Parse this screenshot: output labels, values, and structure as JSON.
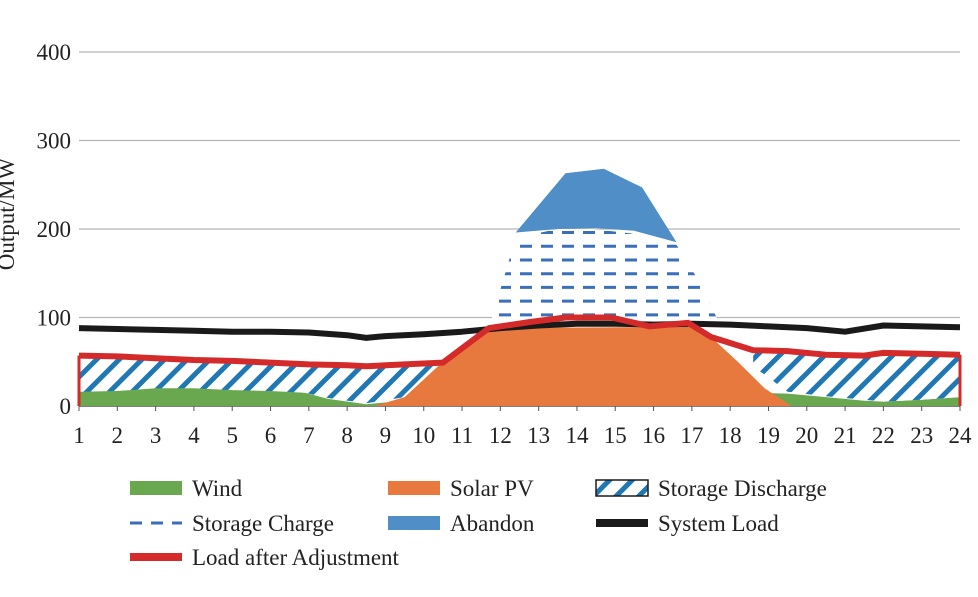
{
  "chart_data": {
    "type": "area",
    "title": "",
    "xlabel": "",
    "ylabel": "Output/MW",
    "x": [
      1,
      2,
      3,
      4,
      5,
      6,
      7,
      8,
      9,
      10,
      11,
      12,
      13,
      14,
      15,
      16,
      17,
      18,
      19,
      20,
      21,
      22,
      23,
      24
    ],
    "xlim": [
      1,
      24
    ],
    "ylim": [
      0,
      400
    ],
    "yticks": [
      0,
      100,
      200,
      300,
      400
    ],
    "grid": true,
    "legend_position": "bottom",
    "series": [
      {
        "name": "Wind",
        "kind": "area",
        "color": "#6aa84f",
        "points": [
          [
            1,
            18
          ],
          [
            2,
            19
          ],
          [
            3,
            22
          ],
          [
            4,
            21
          ],
          [
            5,
            19
          ],
          [
            6,
            18
          ],
          [
            6.9,
            15
          ],
          [
            7.5,
            8
          ],
          [
            8.5,
            2
          ],
          [
            9,
            4
          ],
          [
            10,
            3
          ],
          [
            11,
            2
          ],
          [
            12,
            1
          ],
          [
            13,
            1
          ],
          [
            14,
            0
          ],
          [
            14.9,
            0
          ],
          [
            15.7,
            17
          ],
          [
            16.5,
            17
          ],
          [
            17.5,
            16
          ],
          [
            18.5,
            15
          ],
          [
            19.5,
            14
          ],
          [
            20.5,
            10
          ],
          [
            21.5,
            6
          ],
          [
            22,
            5
          ],
          [
            23,
            7
          ],
          [
            24,
            10
          ]
        ]
      },
      {
        "name": "Solar PV",
        "kind": "area",
        "color": "#e8793e",
        "points": [
          [
            1,
            0
          ],
          [
            8.7,
            0
          ],
          [
            9.5,
            10
          ],
          [
            10.5,
            50
          ],
          [
            11.7,
            88
          ],
          [
            12.8,
            95
          ],
          [
            13.7,
            100
          ],
          [
            14.9,
            100
          ],
          [
            15.9,
            90
          ],
          [
            16.9,
            94
          ],
          [
            17.5,
            78
          ],
          [
            18.2,
            50
          ],
          [
            18.9,
            20
          ],
          [
            19.6,
            0
          ],
          [
            24,
            0
          ]
        ]
      },
      {
        "name": "Storage Discharge",
        "kind": "hatch-area",
        "color": "#1f77b4",
        "segments": [
          [
            [
              1,
              57,
              16
            ],
            [
              2,
              56,
              17
            ],
            [
              3,
              54,
              20
            ],
            [
              4,
              52,
              20
            ],
            [
              5,
              51,
              18
            ],
            [
              6,
              49,
              17
            ],
            [
              6.9,
              47,
              15
            ],
            [
              7.5,
              46,
              9
            ],
            [
              8.5,
              45,
              3
            ],
            [
              9.5,
              47,
              10
            ],
            [
              10.5,
              49,
              49
            ]
          ],
          [
            [
              18.6,
              63,
              45
            ],
            [
              19.5,
              62,
              16
            ],
            [
              20.5,
              58,
              11
            ],
            [
              21.5,
              57,
              7
            ],
            [
              22,
              60,
              5
            ],
            [
              23,
              59,
              7
            ],
            [
              24,
              58,
              10
            ]
          ]
        ]
      },
      {
        "name": "Storage Charge",
        "kind": "dash-area",
        "color": "#3a6fba",
        "points": [
          [
            11.7,
            88
          ],
          [
            12.4,
            190
          ],
          [
            13.5,
            200
          ],
          [
            14.4,
            200
          ],
          [
            15.4,
            195
          ],
          [
            16.6,
            182
          ],
          [
            17.2,
            140
          ],
          [
            17.7,
            95
          ],
          [
            18.2,
            90
          ]
        ]
      },
      {
        "name": "Abandon",
        "kind": "area",
        "color": "#4f8ec6",
        "points": [
          [
            12.4,
            196
          ],
          [
            13.7,
            263
          ],
          [
            14.7,
            268
          ],
          [
            15.7,
            247
          ],
          [
            16.6,
            185
          ],
          [
            15.5,
            198
          ],
          [
            14.5,
            201
          ],
          [
            13.5,
            200
          ]
        ]
      },
      {
        "name": "System Load",
        "kind": "line",
        "color": "#1a1a1a",
        "points": [
          [
            1,
            88
          ],
          [
            2,
            87
          ],
          [
            3,
            86
          ],
          [
            4,
            85
          ],
          [
            5,
            84
          ],
          [
            6,
            84
          ],
          [
            7,
            83
          ],
          [
            8,
            80
          ],
          [
            8.5,
            77
          ],
          [
            9,
            79
          ],
          [
            10,
            81
          ],
          [
            11,
            84
          ],
          [
            12,
            88
          ],
          [
            13,
            91
          ],
          [
            14,
            93
          ],
          [
            15,
            93
          ],
          [
            16,
            92
          ],
          [
            17,
            93
          ],
          [
            18,
            92
          ],
          [
            19,
            90
          ],
          [
            20,
            88
          ],
          [
            21,
            84
          ],
          [
            22,
            91
          ],
          [
            23,
            90
          ],
          [
            24,
            89
          ]
        ]
      },
      {
        "name": "Load after Adjustment",
        "kind": "line",
        "color": "#d42a2a",
        "points": [
          [
            1,
            57
          ],
          [
            2,
            56
          ],
          [
            3,
            54
          ],
          [
            4,
            52
          ],
          [
            5,
            51
          ],
          [
            6,
            49
          ],
          [
            7,
            47
          ],
          [
            8,
            46
          ],
          [
            8.5,
            45
          ],
          [
            9.5,
            47
          ],
          [
            10.5,
            49
          ],
          [
            11.7,
            88
          ],
          [
            12.8,
            95
          ],
          [
            13.7,
            100
          ],
          [
            14.9,
            100
          ],
          [
            15.9,
            90
          ],
          [
            16.9,
            94
          ],
          [
            17.5,
            78
          ],
          [
            18.6,
            63
          ],
          [
            19.5,
            62
          ],
          [
            20.5,
            58
          ],
          [
            21.5,
            57
          ],
          [
            22,
            60
          ],
          [
            23,
            59
          ],
          [
            24,
            58
          ]
        ]
      }
    ]
  }
}
